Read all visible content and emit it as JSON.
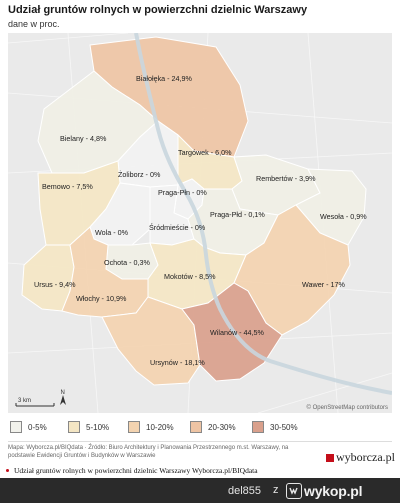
{
  "header": {
    "title": "Udział gruntów rolnych w powierzchni dzielnic Warszawy",
    "subtitle": "dane w proc."
  },
  "map": {
    "districts": [
      {
        "name": "Białołęka",
        "value": "24,9%",
        "label": "Białołęka - 24,9%",
        "color": "#eec4a4"
      },
      {
        "name": "Bielany",
        "value": "4,8%",
        "label": "Bielany - 4,8%",
        "color": "#f0efe5"
      },
      {
        "name": "Targówek",
        "value": "6,0%",
        "label": "Targówek - 6,0%",
        "color": "#f4e6c4"
      },
      {
        "name": "Żoliborz",
        "value": "0%",
        "label": "Żoliborz - 0%",
        "color": "#f2f2f2"
      },
      {
        "name": "Praga-Płn",
        "value": "0%",
        "label": "Praga-Płn - 0%",
        "color": "#f2f2f2"
      },
      {
        "name": "Rembertów",
        "value": "3,9%",
        "label": "Rembertów - 3,9%",
        "color": "#f0efe5"
      },
      {
        "name": "Bemowo",
        "value": "7,5%",
        "label": "Bemowo - 7,5%",
        "color": "#f4e6c4"
      },
      {
        "name": "Praga-Płd",
        "value": "0,1%",
        "label": "Praga-Płd - 0,1%",
        "color": "#f0efe5"
      },
      {
        "name": "Wesoła",
        "value": "0,9%",
        "label": "Wesoła - 0,9%",
        "color": "#f0efe5"
      },
      {
        "name": "Wola",
        "value": "0%",
        "label": "Wola - 0%",
        "color": "#f2f2f2"
      },
      {
        "name": "Śródmieście",
        "value": "0%",
        "label": "Śródmieście - 0%",
        "color": "#f2f2f2"
      },
      {
        "name": "Ochota",
        "value": "0,3%",
        "label": "Ochota - 0,3%",
        "color": "#f0efe5"
      },
      {
        "name": "Ursus",
        "value": "9,4%",
        "label": "Ursus - 9,4%",
        "color": "#f4e6c4"
      },
      {
        "name": "Mokotów",
        "value": "8,5%",
        "label": "Mokotów - 8,5%",
        "color": "#f4e6c4"
      },
      {
        "name": "Wawer",
        "value": "17%",
        "label": "Wawer - 17%",
        "color": "#f3d3b0"
      },
      {
        "name": "Włochy",
        "value": "10,9%",
        "label": "Włochy - 10,9%",
        "color": "#f3d3b0"
      },
      {
        "name": "Wilanów",
        "value": "44,5%",
        "label": "Wilanów - 44,5%",
        "color": "#d9a08c"
      },
      {
        "name": "Ursynów",
        "value": "18,1%",
        "label": "Ursynów - 18,1%",
        "color": "#f3d3b0"
      }
    ],
    "scale_label": "3 km",
    "north_label": "N",
    "attribution": "© OpenStreetMap contributors"
  },
  "legend": {
    "items": [
      {
        "label": "0-5%",
        "color": "#f2f2ec"
      },
      {
        "label": "5-10%",
        "color": "#f4e6c4"
      },
      {
        "label": "10-20%",
        "color": "#f3d3b0"
      },
      {
        "label": "20-30%",
        "color": "#eec4a4"
      },
      {
        "label": "30-50%",
        "color": "#d9a08c"
      }
    ]
  },
  "source": {
    "text": "Mapa: Wyborcza.pl/BIQdata · Źródło: Biuro Architektury i Planowania Przestrzennego m.st. Warszawy, na podstawie Ewidencji Gruntów i Budynków w Warszawie",
    "brand": "wyborcza.pl"
  },
  "caption": {
    "text": "Udział gruntów rolnych w powierzchni dzielnic Warszawy Wyborcza.pl/BIQdata"
  },
  "footer": {
    "username": "del855",
    "separator": "z",
    "site": "wykop.pl"
  }
}
